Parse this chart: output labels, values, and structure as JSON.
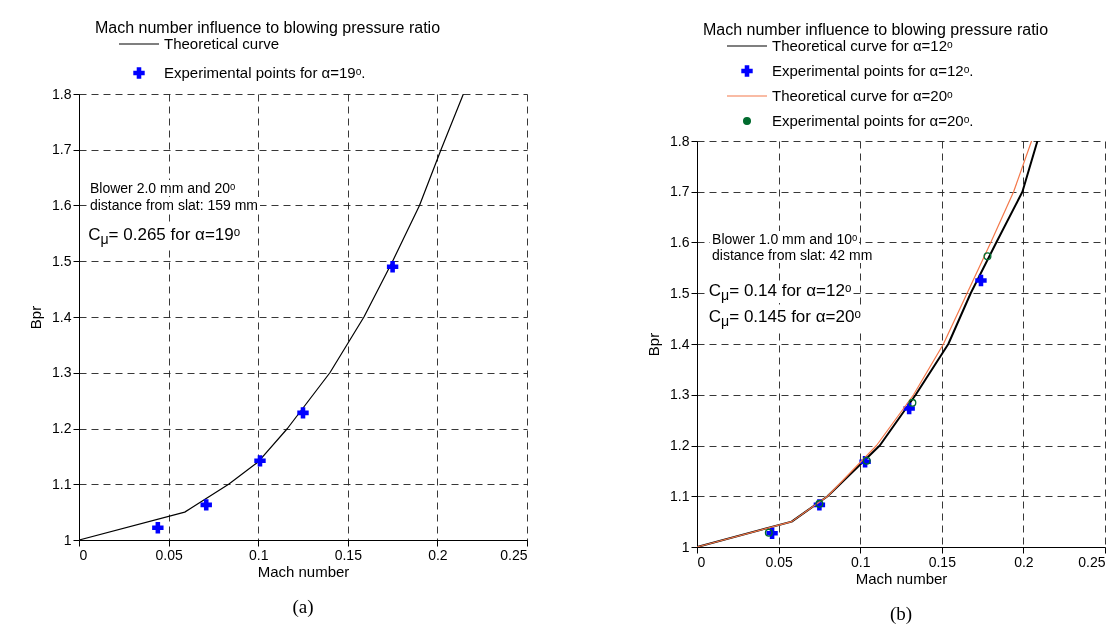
{
  "chart_data": [
    {
      "type": "line",
      "title": "Mach number influence to blowing pressure ratio",
      "xlabel": "Mach number",
      "ylabel": "Bpr",
      "xlim": [
        0,
        0.25
      ],
      "ylim": [
        1,
        1.8
      ],
      "xticks": [
        0,
        0.05,
        0.1,
        0.15,
        0.2,
        0.25
      ],
      "yticks": [
        1,
        1.1,
        1.2,
        1.3,
        1.4,
        1.5,
        1.6,
        1.7,
        1.8
      ],
      "grid": true,
      "legend": "top",
      "series": [
        {
          "name": "Theoretical curve",
          "type": "line",
          "color": "#000000",
          "x": [
            0,
            0.059,
            0.0835,
            0.1,
            0.1163,
            0.14,
            0.159,
            0.175,
            0.19,
            0.202,
            0.2145
          ],
          "values": [
            1,
            1.05,
            1.1,
            1.14,
            1.2,
            1.3,
            1.4,
            1.5,
            1.6,
            1.7,
            1.8
          ]
        },
        {
          "name": "Experimental points for α=19ᵒ.",
          "type": "scatter",
          "marker": "cross",
          "color": "#0000ff",
          "x": [
            0.044,
            0.071,
            0.101,
            0.125,
            0.175
          ],
          "values": [
            1.022,
            1.063,
            1.142,
            1.228,
            1.49
          ]
        }
      ],
      "annotations": [
        "Blower 2.0 mm and 20ᵒ",
        "distance from slat: 159 mm",
        "C$_{μ}$= 0.265  for α=19ᵒ",
        "(a)"
      ]
    },
    {
      "type": "line",
      "title": "Mach number influence to blowing pressure ratio",
      "xlabel": "Mach number",
      "ylabel": "Bpr",
      "xlim": [
        0,
        0.25
      ],
      "ylim": [
        1,
        1.8
      ],
      "xticks": [
        0,
        0.05,
        0.1,
        0.15,
        0.2,
        0.25
      ],
      "yticks": [
        1,
        1.1,
        1.2,
        1.3,
        1.4,
        1.5,
        1.6,
        1.7,
        1.8
      ],
      "grid": true,
      "legend": "top",
      "series": [
        {
          "name": "Theoretical curve for α=12ᵒ",
          "type": "line",
          "color": "#000000",
          "x": [
            0,
            0.058,
            0.08,
            0.112,
            0.134,
            0.154,
            0.1677,
            0.1834,
            0.1994,
            0.2086
          ],
          "values": [
            1,
            1.05,
            1.1,
            1.2,
            1.3,
            1.4,
            1.5,
            1.6,
            1.7,
            1.8
          ]
        },
        {
          "name": "Experimental points for α=12ᵒ.",
          "type": "scatter",
          "marker": "cross",
          "color": "#0000ff",
          "x": [
            0.046,
            0.075,
            0.103,
            0.13,
            0.174
          ],
          "values": [
            1.027,
            1.083,
            1.168,
            1.273,
            1.525
          ]
        },
        {
          "name": "Theoretical curve for α=20ᵒ",
          "type": "line",
          "color": "#f4784a",
          "x": [
            0,
            0.058,
            0.08,
            0.11,
            0.1327,
            0.151,
            0.1655,
            0.18,
            0.194,
            0.205
          ],
          "values": [
            1,
            1.05,
            1.1,
            1.2,
            1.3,
            1.4,
            1.5,
            1.6,
            1.7,
            1.8
          ]
        },
        {
          "name": "Experimental points for α=20ᵒ.",
          "type": "scatter",
          "marker": "circle",
          "color": "#006b2e",
          "x": [
            0.044,
            0.075,
            0.104,
            0.132,
            0.178
          ],
          "values": [
            1.028,
            1.085,
            1.17,
            1.284,
            1.573
          ]
        }
      ],
      "annotations": [
        "Blower 1.0 mm and 10ᵒ",
        "distance from slat: 42 mm",
        "C$_{μ}$= 0.14  for α=12ᵒ",
        "C$_{μ}$= 0.145  for α=20ᵒ",
        "(b)"
      ]
    }
  ]
}
